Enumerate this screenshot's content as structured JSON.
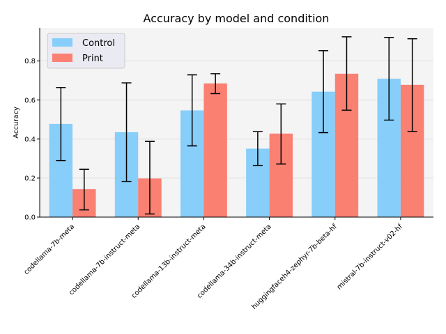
{
  "chart_data": {
    "type": "bar",
    "title": "Accuracy by model and condition",
    "xlabel": "",
    "ylabel": "Accuracy",
    "ylim": [
      0,
      0.97
    ],
    "yticks": [
      "0.0",
      "0.2",
      "0.4",
      "0.6",
      "0.8"
    ],
    "grid": "horizontal",
    "legend_position": "top-left",
    "categories": [
      "codellama-7b-meta",
      "codellama-7b-instruct-meta",
      "codellama-13b-instruct-meta",
      "codellama-34b-instruct-meta",
      "huggingfaceh4-zephyr-7b-beta-hf",
      "mistral-7b-instruct-v02-hf"
    ],
    "series": [
      {
        "name": "Control",
        "color": "#87CEFA",
        "values": [
          0.478,
          0.435,
          0.547,
          0.351,
          0.643,
          0.709
        ],
        "err_low": [
          0.29,
          0.183,
          0.365,
          0.265,
          0.433,
          0.497
        ],
        "err_high": [
          0.664,
          0.688,
          0.729,
          0.438,
          0.853,
          0.921
        ]
      },
      {
        "name": "Print",
        "color": "#FA8072",
        "values": [
          0.143,
          0.198,
          0.685,
          0.428,
          0.735,
          0.678
        ],
        "err_low": [
          0.037,
          0.016,
          0.633,
          0.272,
          0.548,
          0.438
        ],
        "err_high": [
          0.245,
          0.388,
          0.735,
          0.58,
          0.924,
          0.914
        ]
      }
    ]
  }
}
